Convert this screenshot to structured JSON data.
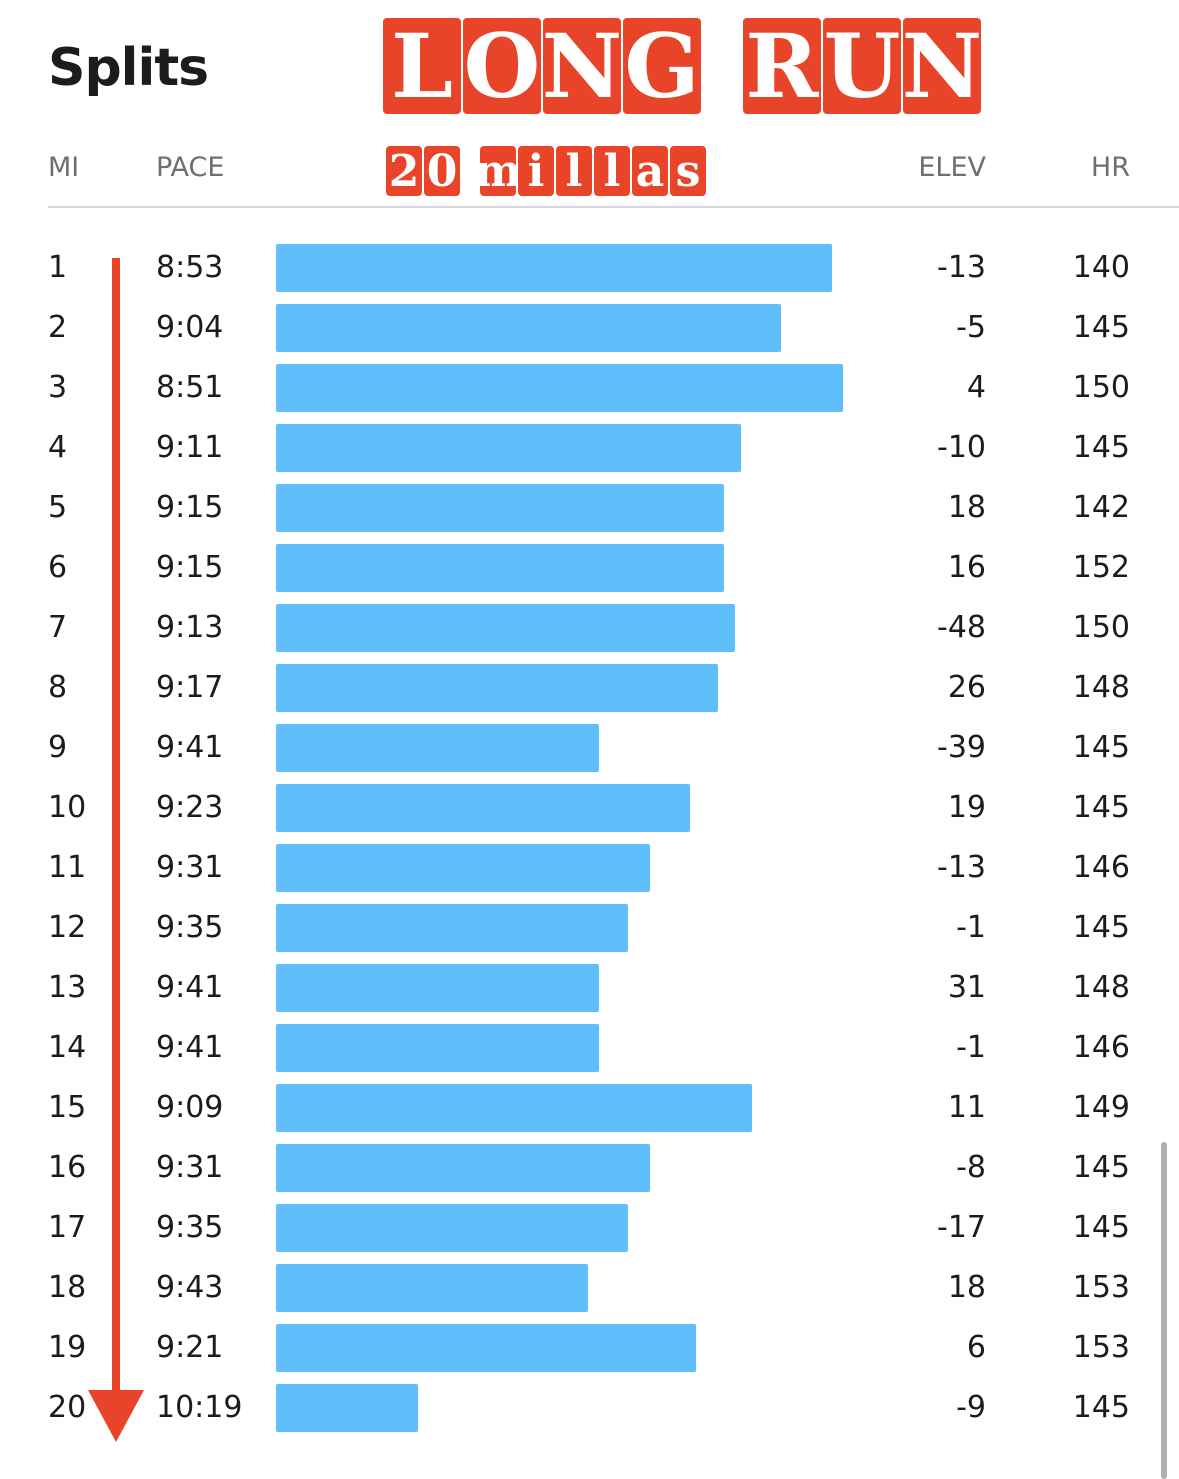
{
  "header": {
    "title": "Splits",
    "banner_line1": [
      "L",
      "O",
      "N",
      "G",
      " ",
      "R",
      "U",
      "N"
    ],
    "banner_line2": [
      "2",
      "0",
      " ",
      "m",
      "i",
      "l",
      "l",
      "a",
      "s"
    ]
  },
  "columns": {
    "mi": "MI",
    "pace": "PACE",
    "elev": "ELEV",
    "hr": "HR"
  },
  "colors": {
    "bar": "#5ebffa",
    "accent_red": "#e8442a"
  },
  "splits": [
    {
      "mi": "1",
      "pace": "8:53",
      "elev": "-13",
      "hr": "140",
      "bar_fraction": 0.98
    },
    {
      "mi": "2",
      "pace": "9:04",
      "elev": "-5",
      "hr": "145",
      "bar_fraction": 0.89
    },
    {
      "mi": "3",
      "pace": "8:51",
      "elev": "4",
      "hr": "150",
      "bar_fraction": 1.0
    },
    {
      "mi": "4",
      "pace": "9:11",
      "elev": "-10",
      "hr": "145",
      "bar_fraction": 0.82
    },
    {
      "mi": "5",
      "pace": "9:15",
      "elev": "18",
      "hr": "142",
      "bar_fraction": 0.79
    },
    {
      "mi": "6",
      "pace": "9:15",
      "elev": "16",
      "hr": "152",
      "bar_fraction": 0.79
    },
    {
      "mi": "7",
      "pace": "9:13",
      "elev": "-48",
      "hr": "150",
      "bar_fraction": 0.81
    },
    {
      "mi": "8",
      "pace": "9:17",
      "elev": "26",
      "hr": "148",
      "bar_fraction": 0.78
    },
    {
      "mi": "9",
      "pace": "9:41",
      "elev": "-39",
      "hr": "145",
      "bar_fraction": 0.57
    },
    {
      "mi": "10",
      "pace": "9:23",
      "elev": "19",
      "hr": "145",
      "bar_fraction": 0.73
    },
    {
      "mi": "11",
      "pace": "9:31",
      "elev": "-13",
      "hr": "146",
      "bar_fraction": 0.66
    },
    {
      "mi": "12",
      "pace": "9:35",
      "elev": "-1",
      "hr": "145",
      "bar_fraction": 0.62
    },
    {
      "mi": "13",
      "pace": "9:41",
      "elev": "31",
      "hr": "148",
      "bar_fraction": 0.57
    },
    {
      "mi": "14",
      "pace": "9:41",
      "elev": "-1",
      "hr": "146",
      "bar_fraction": 0.57
    },
    {
      "mi": "15",
      "pace": "9:09",
      "elev": "11",
      "hr": "149",
      "bar_fraction": 0.84
    },
    {
      "mi": "16",
      "pace": "9:31",
      "elev": "-8",
      "hr": "145",
      "bar_fraction": 0.66
    },
    {
      "mi": "17",
      "pace": "9:35",
      "elev": "-17",
      "hr": "145",
      "bar_fraction": 0.62
    },
    {
      "mi": "18",
      "pace": "9:43",
      "elev": "18",
      "hr": "153",
      "bar_fraction": 0.55
    },
    {
      "mi": "19",
      "pace": "9:21",
      "elev": "6",
      "hr": "153",
      "bar_fraction": 0.74
    },
    {
      "mi": "20",
      "pace": "10:19",
      "elev": "-9",
      "hr": "145",
      "bar_fraction": 0.25
    }
  ]
}
